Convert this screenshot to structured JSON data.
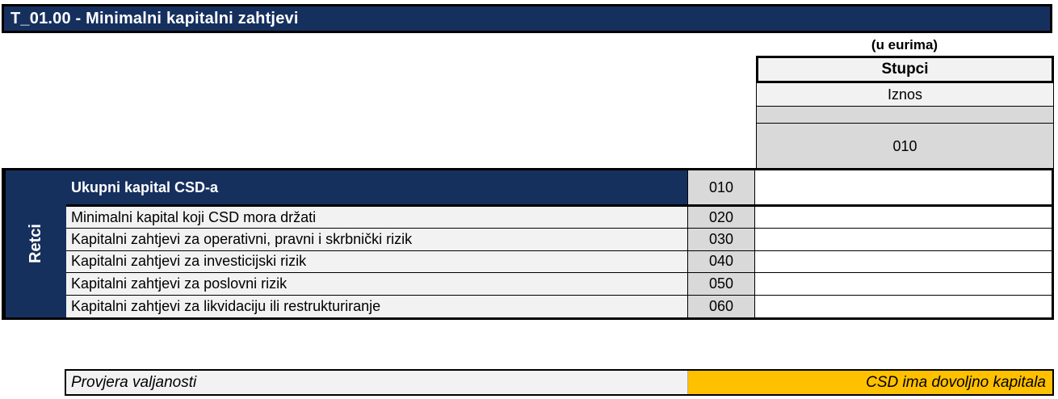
{
  "title": "T_01.00 - Minimalni kapitalni zahtjevi",
  "unit_note": "(u eurima)",
  "columns_header": {
    "label": "Stupci",
    "sub_label": "Iznos",
    "code": "010"
  },
  "rows_header": "Retci",
  "table": {
    "rows": [
      {
        "label": "Ukupni kapital CSD-a",
        "code": "010",
        "value": "",
        "emphasis": true
      },
      {
        "label": "Minimalni kapital koji CSD mora držati",
        "code": "020",
        "value": "",
        "emphasis": false
      },
      {
        "label": "Kapitalni zahtjevi za operativni, pravni i skrbnički rizik",
        "code": "030",
        "value": "",
        "emphasis": false
      },
      {
        "label": "Kapitalni zahtjevi za investicijski rizik",
        "code": "040",
        "value": "",
        "emphasis": false
      },
      {
        "label": "Kapitalni zahtjevi za poslovni rizik",
        "code": "050",
        "value": "",
        "emphasis": false
      },
      {
        "label": "Kapitalni zahtjevi za likvidaciju ili restrukturiranje",
        "code": "060",
        "value": "",
        "emphasis": false
      }
    ]
  },
  "validation": {
    "label": "Provjera valjanosti",
    "status": "CSD ima dovoljno kapitala"
  },
  "colors": {
    "navy": "#16305E",
    "row_bg": "#F2F2F2",
    "code_bg": "#D9D9D9",
    "status_bg": "#FFC000",
    "border": "#000000"
  }
}
